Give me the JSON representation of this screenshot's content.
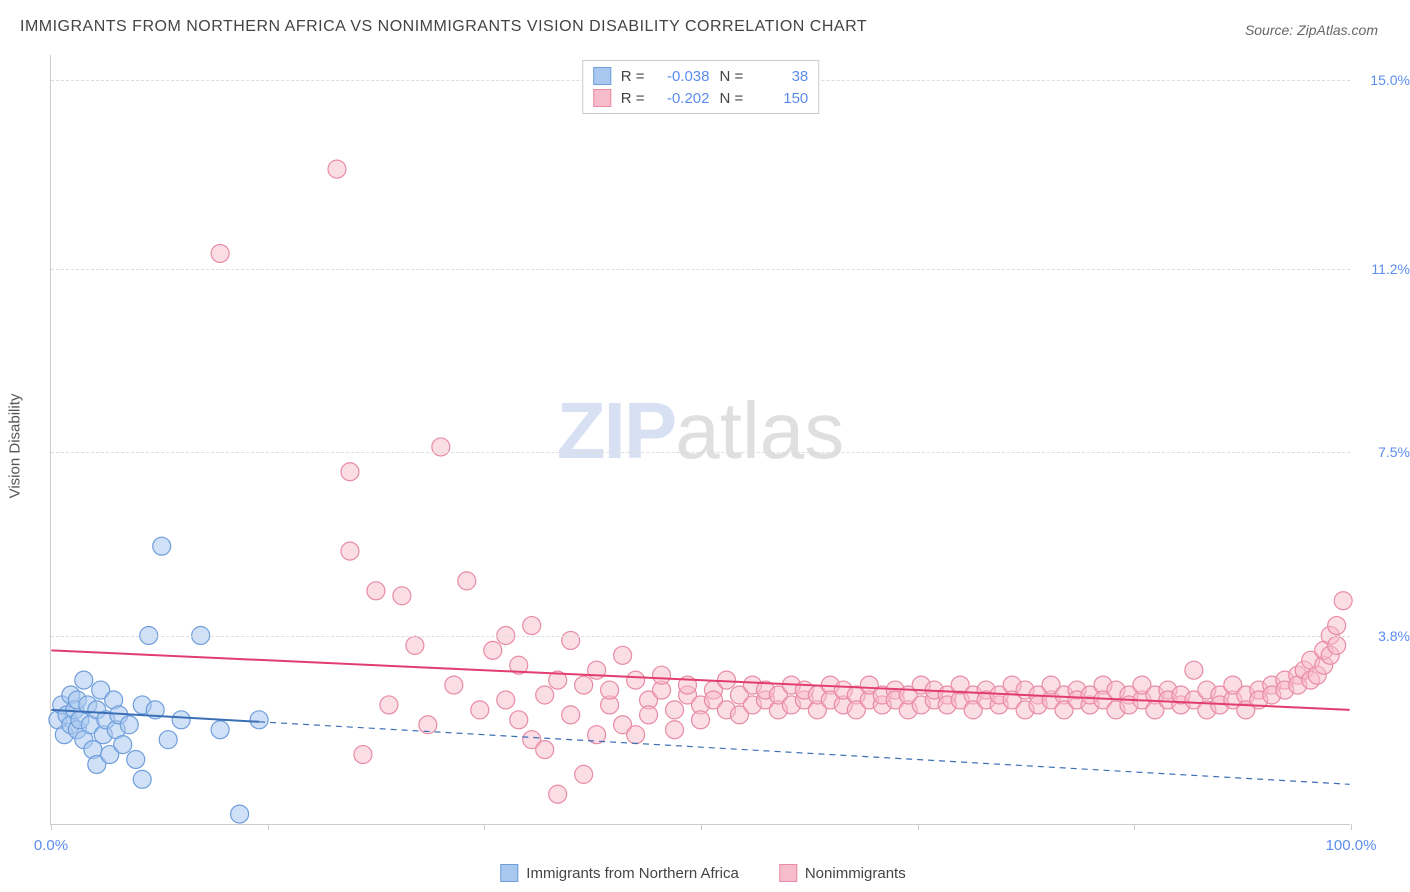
{
  "title": "IMMIGRANTS FROM NORTHERN AFRICA VS NONIMMIGRANTS VISION DISABILITY CORRELATION CHART",
  "source": "Source: ZipAtlas.com",
  "ylabel": "Vision Disability",
  "watermark": {
    "zip": "ZIP",
    "atlas": "atlas"
  },
  "chart": {
    "type": "scatter",
    "xlim": [
      0,
      100
    ],
    "ylim": [
      0,
      15.5
    ],
    "x_ticks": [
      0,
      16.67,
      33.33,
      50,
      66.67,
      83.33,
      100
    ],
    "x_tick_labels": {
      "0": "0.0%",
      "100": "100.0%"
    },
    "y_gridlines": [
      3.8,
      7.5,
      11.2,
      15.0
    ],
    "y_tick_labels": [
      "3.8%",
      "7.5%",
      "11.2%",
      "15.0%"
    ],
    "background_color": "#ffffff",
    "grid_color": "#dddddd",
    "axis_color": "#cccccc",
    "tick_label_color": "#5b8def",
    "marker_radius": 9,
    "marker_stroke_width": 1.2,
    "series": [
      {
        "name": "Immigrants from Northern Africa",
        "fill": "#a9c8f0",
        "stroke": "#6f9edb",
        "fill_opacity": 0.55,
        "R": "-0.038",
        "N": "38",
        "trend": {
          "solid_x_range": [
            0,
            16
          ],
          "y_start": 2.3,
          "y_end": 0.8,
          "color": "#3b6fb5",
          "width": 2,
          "dash_after_solid": true
        },
        "points": [
          [
            0.5,
            2.1
          ],
          [
            0.8,
            2.4
          ],
          [
            1.0,
            1.8
          ],
          [
            1.2,
            2.2
          ],
          [
            1.5,
            2.0
          ],
          [
            1.5,
            2.6
          ],
          [
            1.8,
            2.3
          ],
          [
            2.0,
            1.9
          ],
          [
            2.0,
            2.5
          ],
          [
            2.2,
            2.1
          ],
          [
            2.5,
            1.7
          ],
          [
            2.5,
            2.9
          ],
          [
            2.8,
            2.4
          ],
          [
            3.0,
            2.0
          ],
          [
            3.2,
            1.5
          ],
          [
            3.5,
            2.3
          ],
          [
            3.5,
            1.2
          ],
          [
            3.8,
            2.7
          ],
          [
            4.0,
            1.8
          ],
          [
            4.2,
            2.1
          ],
          [
            4.5,
            1.4
          ],
          [
            4.8,
            2.5
          ],
          [
            5.0,
            1.9
          ],
          [
            5.2,
            2.2
          ],
          [
            5.5,
            1.6
          ],
          [
            6.0,
            2.0
          ],
          [
            6.5,
            1.3
          ],
          [
            7.0,
            2.4
          ],
          [
            7.0,
            0.9
          ],
          [
            7.5,
            3.8
          ],
          [
            8.0,
            2.3
          ],
          [
            8.5,
            5.6
          ],
          [
            9.0,
            1.7
          ],
          [
            10.0,
            2.1
          ],
          [
            11.5,
            3.8
          ],
          [
            13.0,
            1.9
          ],
          [
            14.5,
            0.2
          ],
          [
            16.0,
            2.1
          ]
        ]
      },
      {
        "name": "Nonimmigrants",
        "fill": "#f7bccc",
        "stroke": "#e88ba5",
        "fill_opacity": 0.5,
        "R": "-0.202",
        "N": "150",
        "trend": {
          "solid_x_range": [
            0,
            100
          ],
          "y_start": 3.5,
          "y_end": 2.3,
          "color": "#e23d6f",
          "width": 2,
          "dash_after_solid": false
        },
        "points": [
          [
            13,
            11.5
          ],
          [
            22,
            13.2
          ],
          [
            23,
            7.1
          ],
          [
            23,
            5.5
          ],
          [
            24,
            1.4
          ],
          [
            25,
            4.7
          ],
          [
            26,
            2.4
          ],
          [
            27,
            4.6
          ],
          [
            28,
            3.6
          ],
          [
            29,
            2.0
          ],
          [
            30,
            7.6
          ],
          [
            31,
            2.8
          ],
          [
            32,
            4.9
          ],
          [
            33,
            2.3
          ],
          [
            34,
            3.5
          ],
          [
            35,
            2.5
          ],
          [
            35,
            3.8
          ],
          [
            36,
            2.1
          ],
          [
            36,
            3.2
          ],
          [
            37,
            1.7
          ],
          [
            37,
            4.0
          ],
          [
            38,
            2.6
          ],
          [
            38,
            1.5
          ],
          [
            39,
            2.9
          ],
          [
            39,
            0.6
          ],
          [
            40,
            3.7
          ],
          [
            40,
            2.2
          ],
          [
            41,
            1.0
          ],
          [
            41,
            2.8
          ],
          [
            42,
            3.1
          ],
          [
            42,
            1.8
          ],
          [
            43,
            2.4
          ],
          [
            43,
            2.7
          ],
          [
            44,
            2.0
          ],
          [
            44,
            3.4
          ],
          [
            45,
            2.9
          ],
          [
            45,
            1.8
          ],
          [
            46,
            2.5
          ],
          [
            46,
            2.2
          ],
          [
            47,
            2.7
          ],
          [
            47,
            3.0
          ],
          [
            48,
            2.3
          ],
          [
            48,
            1.9
          ],
          [
            49,
            2.6
          ],
          [
            49,
            2.8
          ],
          [
            50,
            2.4
          ],
          [
            50,
            2.1
          ],
          [
            51,
            2.7
          ],
          [
            51,
            2.5
          ],
          [
            52,
            2.3
          ],
          [
            52,
            2.9
          ],
          [
            53,
            2.6
          ],
          [
            53,
            2.2
          ],
          [
            54,
            2.8
          ],
          [
            54,
            2.4
          ],
          [
            55,
            2.5
          ],
          [
            55,
            2.7
          ],
          [
            56,
            2.3
          ],
          [
            56,
            2.6
          ],
          [
            57,
            2.8
          ],
          [
            57,
            2.4
          ],
          [
            58,
            2.5
          ],
          [
            58,
            2.7
          ],
          [
            59,
            2.3
          ],
          [
            59,
            2.6
          ],
          [
            60,
            2.8
          ],
          [
            60,
            2.5
          ],
          [
            61,
            2.4
          ],
          [
            61,
            2.7
          ],
          [
            62,
            2.6
          ],
          [
            62,
            2.3
          ],
          [
            63,
            2.5
          ],
          [
            63,
            2.8
          ],
          [
            64,
            2.4
          ],
          [
            64,
            2.6
          ],
          [
            65,
            2.7
          ],
          [
            65,
            2.5
          ],
          [
            66,
            2.3
          ],
          [
            66,
            2.6
          ],
          [
            67,
            2.8
          ],
          [
            67,
            2.4
          ],
          [
            68,
            2.5
          ],
          [
            68,
            2.7
          ],
          [
            69,
            2.6
          ],
          [
            69,
            2.4
          ],
          [
            70,
            2.5
          ],
          [
            70,
            2.8
          ],
          [
            71,
            2.6
          ],
          [
            71,
            2.3
          ],
          [
            72,
            2.7
          ],
          [
            72,
            2.5
          ],
          [
            73,
            2.4
          ],
          [
            73,
            2.6
          ],
          [
            74,
            2.8
          ],
          [
            74,
            2.5
          ],
          [
            75,
            2.3
          ],
          [
            75,
            2.7
          ],
          [
            76,
            2.6
          ],
          [
            76,
            2.4
          ],
          [
            77,
            2.5
          ],
          [
            77,
            2.8
          ],
          [
            78,
            2.6
          ],
          [
            78,
            2.3
          ],
          [
            79,
            2.7
          ],
          [
            79,
            2.5
          ],
          [
            80,
            2.4
          ],
          [
            80,
            2.6
          ],
          [
            81,
            2.8
          ],
          [
            81,
            2.5
          ],
          [
            82,
            2.3
          ],
          [
            82,
            2.7
          ],
          [
            83,
            2.6
          ],
          [
            83,
            2.4
          ],
          [
            84,
            2.5
          ],
          [
            84,
            2.8
          ],
          [
            85,
            2.6
          ],
          [
            85,
            2.3
          ],
          [
            86,
            2.7
          ],
          [
            86,
            2.5
          ],
          [
            87,
            2.4
          ],
          [
            87,
            2.6
          ],
          [
            88,
            3.1
          ],
          [
            88,
            2.5
          ],
          [
            89,
            2.3
          ],
          [
            89,
            2.7
          ],
          [
            90,
            2.6
          ],
          [
            90,
            2.4
          ],
          [
            91,
            2.5
          ],
          [
            91,
            2.8
          ],
          [
            92,
            2.6
          ],
          [
            92,
            2.3
          ],
          [
            93,
            2.7
          ],
          [
            93,
            2.5
          ],
          [
            94,
            2.8
          ],
          [
            94,
            2.6
          ],
          [
            95,
            2.9
          ],
          [
            95,
            2.7
          ],
          [
            96,
            3.0
          ],
          [
            96,
            2.8
          ],
          [
            96.5,
            3.1
          ],
          [
            97,
            2.9
          ],
          [
            97,
            3.3
          ],
          [
            97.5,
            3.0
          ],
          [
            98,
            3.2
          ],
          [
            98,
            3.5
          ],
          [
            98.5,
            3.4
          ],
          [
            98.5,
            3.8
          ],
          [
            99,
            3.6
          ],
          [
            99,
            4.0
          ],
          [
            99.5,
            4.5
          ]
        ]
      }
    ]
  },
  "bottom_legend": [
    {
      "label": "Immigrants from Northern Africa",
      "fill": "#a9c8f0",
      "stroke": "#6f9edb"
    },
    {
      "label": "Nonimmigrants",
      "fill": "#f7bccc",
      "stroke": "#e88ba5"
    }
  ]
}
